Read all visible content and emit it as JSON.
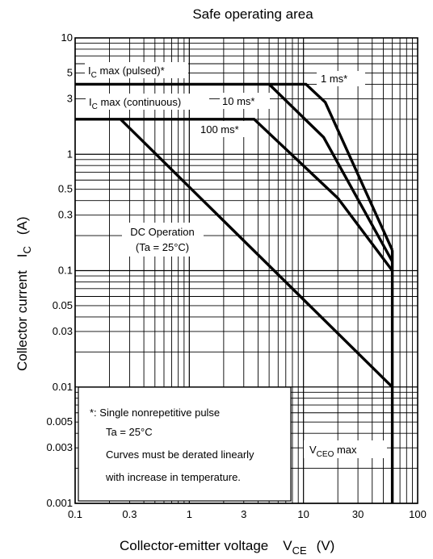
{
  "chart_data": {
    "type": "line",
    "title": "Safe operating area",
    "xlabel": "Collector-emitter voltage",
    "xlabel_symbol": "V",
    "xlabel_subscript": "CE",
    "xlabel_unit": "(V)",
    "ylabel": "Collector current",
    "ylabel_symbol": "I",
    "ylabel_subscript": "C",
    "ylabel_unit": "(A)",
    "x_scale": "log",
    "y_scale": "log",
    "xlim": [
      0.1,
      100
    ],
    "ylim": [
      0.001,
      10
    ],
    "grid": true,
    "x_ticks": [
      {
        "value": 0.1,
        "label": "0.1"
      },
      {
        "value": 0.3,
        "label": "0.3"
      },
      {
        "value": 1,
        "label": "1"
      },
      {
        "value": 3,
        "label": "3"
      },
      {
        "value": 10,
        "label": "10"
      },
      {
        "value": 30,
        "label": "30"
      },
      {
        "value": 100,
        "label": "100"
      }
    ],
    "y_ticks": [
      {
        "value": 10,
        "label": "10"
      },
      {
        "value": 5,
        "label": "5"
      },
      {
        "value": 3,
        "label": "3"
      },
      {
        "value": 1,
        "label": "1"
      },
      {
        "value": 0.5,
        "label": "0.5"
      },
      {
        "value": 0.3,
        "label": "0.3"
      },
      {
        "value": 0.1,
        "label": "0.1"
      },
      {
        "value": 0.05,
        "label": "0.05"
      },
      {
        "value": 0.03,
        "label": "0.03"
      },
      {
        "value": 0.01,
        "label": "0.01"
      },
      {
        "value": 0.005,
        "label": "0.005"
      },
      {
        "value": 0.003,
        "label": "0.003"
      },
      {
        "value": 0.001,
        "label": "0.001"
      }
    ],
    "series": [
      {
        "points": [
          [
            0.1,
            4
          ],
          [
            10.5,
            4
          ],
          [
            15.5,
            2.8
          ],
          [
            60,
            0.15
          ]
        ]
      },
      {
        "points": [
          [
            5,
            4
          ],
          [
            15,
            1.4
          ],
          [
            60,
            0.12
          ]
        ]
      },
      {
        "points": [
          [
            0.1,
            2
          ],
          [
            3.7,
            2
          ],
          [
            20,
            0.42
          ],
          [
            60,
            0.1
          ]
        ]
      },
      {
        "points": [
          [
            0.25,
            2
          ],
          [
            60,
            0.01
          ]
        ]
      },
      {
        "points": [
          [
            60,
            0.15
          ],
          [
            60,
            0.001
          ]
        ]
      }
    ],
    "annotations": {
      "ic_pulsed_main": "I",
      "ic_pulsed_sub": "C",
      "ic_pulsed_rest": " max (pulsed)*",
      "ic_cont_main": "I",
      "ic_cont_sub": "C",
      "ic_cont_rest": " max (continuous)",
      "ms1": "1 ms*",
      "ms10": "10 ms*",
      "ms100": "100 ms*",
      "dc_line1": "DC Operation",
      "dc_line2": "(Ta = 25°C)",
      "vceo_main": "V",
      "vceo_sub": "CEO",
      "vceo_rest": " max",
      "note_line1": "*:  Single nonrepetitive pulse",
      "note_line2": "Ta = 25°C",
      "note_line3": "Curves must be derated linearly",
      "note_line4": "with increase in temperature."
    }
  }
}
